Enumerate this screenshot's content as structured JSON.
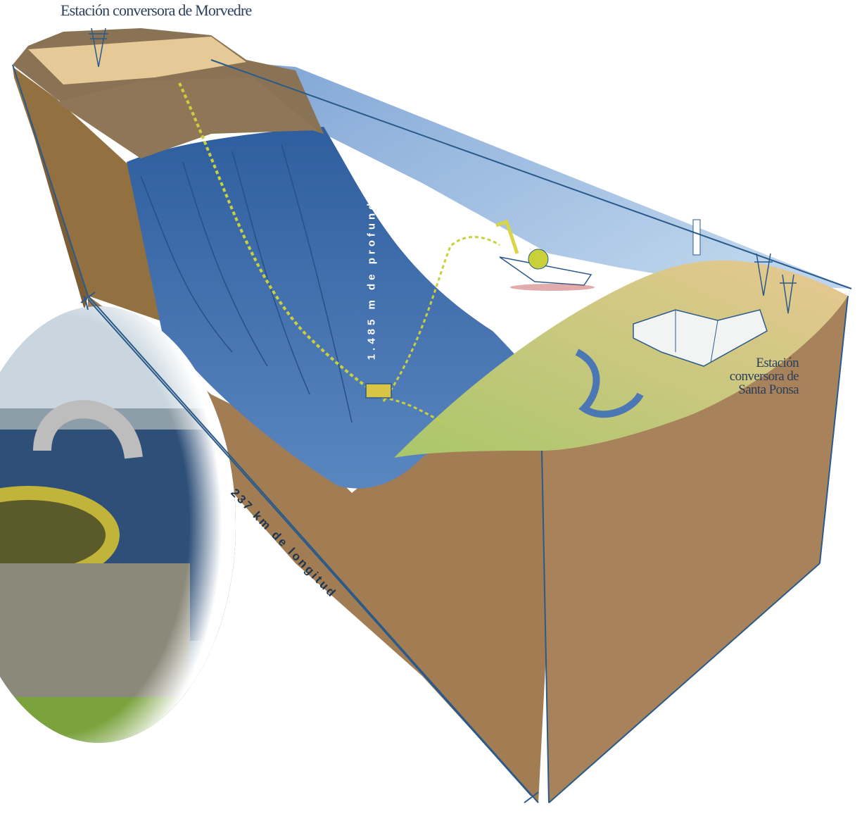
{
  "labels": {
    "station_top": "Estación conversora de Morvedre",
    "station_right_line1": "Estación",
    "station_right_line2": "conversora de",
    "station_right_line3": "Santa Ponsa",
    "depth": "1.485 m de profundidad",
    "length": "237 km de longitud"
  },
  "colors": {
    "earth": "#a27c52",
    "earth_dark": "#8a6843",
    "water": "#4b77b5",
    "water_light": "#9fc0e3",
    "outline": "#2a5a8a",
    "sand": "#e9c58f",
    "cable": "#c9d13a"
  }
}
